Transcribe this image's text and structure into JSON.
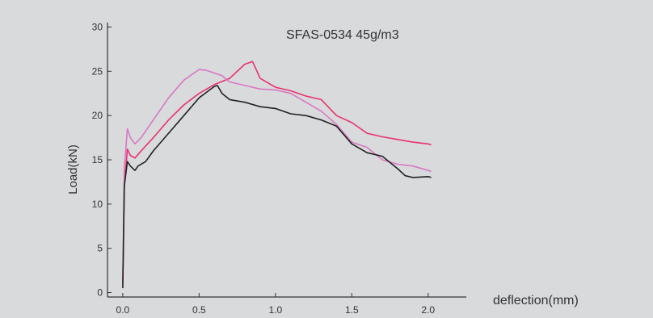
{
  "chart_data": {
    "type": "line",
    "title": "SFAS-0534 45g/m3",
    "xlabel": "deflection(mm)",
    "ylabel": "Load(kN)",
    "xlim": [
      -0.1,
      2.25
    ],
    "ylim": [
      -0.5,
      30.5
    ],
    "xticks": [
      0.0,
      0.5,
      1.0,
      1.5,
      2.0
    ],
    "xtick_labels": [
      "0.0",
      "0.5",
      "1.0",
      "1.5",
      "2.0"
    ],
    "yticks": [
      0,
      5,
      10,
      15,
      20,
      25,
      30
    ],
    "ytick_labels": [
      "0",
      "5",
      "10",
      "15",
      "20",
      "25",
      "30"
    ],
    "grid": false,
    "series": [
      {
        "color": "#e8326e",
        "x": [
          0.0,
          0.01,
          0.03,
          0.05,
          0.08,
          0.12,
          0.2,
          0.3,
          0.4,
          0.5,
          0.6,
          0.7,
          0.8,
          0.85,
          0.9,
          1.0,
          1.1,
          1.2,
          1.3,
          1.4,
          1.5,
          1.6,
          1.7,
          1.8,
          1.9,
          2.0,
          2.02
        ],
        "y": [
          1,
          12,
          16.2,
          15.5,
          15.2,
          16,
          17.5,
          19.5,
          21.2,
          22.5,
          23.5,
          24.2,
          25.8,
          26.1,
          24.2,
          23.2,
          22.8,
          22.2,
          21.8,
          20,
          19.2,
          18,
          17.6,
          17.3,
          17,
          16.8,
          16.7
        ]
      },
      {
        "color": "#d977c6",
        "x": [
          0.0,
          0.01,
          0.03,
          0.05,
          0.08,
          0.12,
          0.2,
          0.3,
          0.4,
          0.5,
          0.55,
          0.6,
          0.65,
          0.7,
          0.8,
          0.9,
          1.0,
          1.1,
          1.2,
          1.3,
          1.4,
          1.5,
          1.6,
          1.7,
          1.8,
          1.9,
          2.0,
          2.02
        ],
        "y": [
          1,
          14,
          18.5,
          17.5,
          16.8,
          17.5,
          19.5,
          22,
          24,
          25.2,
          25.1,
          24.8,
          24.5,
          23.8,
          23.4,
          23,
          22.9,
          22.5,
          21.5,
          20.5,
          19,
          17,
          16.4,
          15,
          14.5,
          14.3,
          13.8,
          13.7
        ]
      },
      {
        "color": "#222222",
        "x": [
          0.0,
          0.01,
          0.03,
          0.05,
          0.08,
          0.1,
          0.15,
          0.2,
          0.3,
          0.4,
          0.5,
          0.6,
          0.62,
          0.65,
          0.7,
          0.8,
          0.9,
          1.0,
          1.1,
          1.2,
          1.3,
          1.4,
          1.5,
          1.6,
          1.7,
          1.8,
          1.85,
          1.9,
          2.0,
          2.02
        ],
        "y": [
          0.5,
          12,
          14.8,
          14.3,
          13.8,
          14.3,
          14.8,
          16,
          18,
          20,
          22,
          23.3,
          23.4,
          22.5,
          21.8,
          21.5,
          21,
          20.8,
          20.2,
          20,
          19.5,
          18.8,
          16.8,
          15.8,
          15.4,
          14,
          13.2,
          13,
          13.1,
          13
        ]
      }
    ]
  }
}
